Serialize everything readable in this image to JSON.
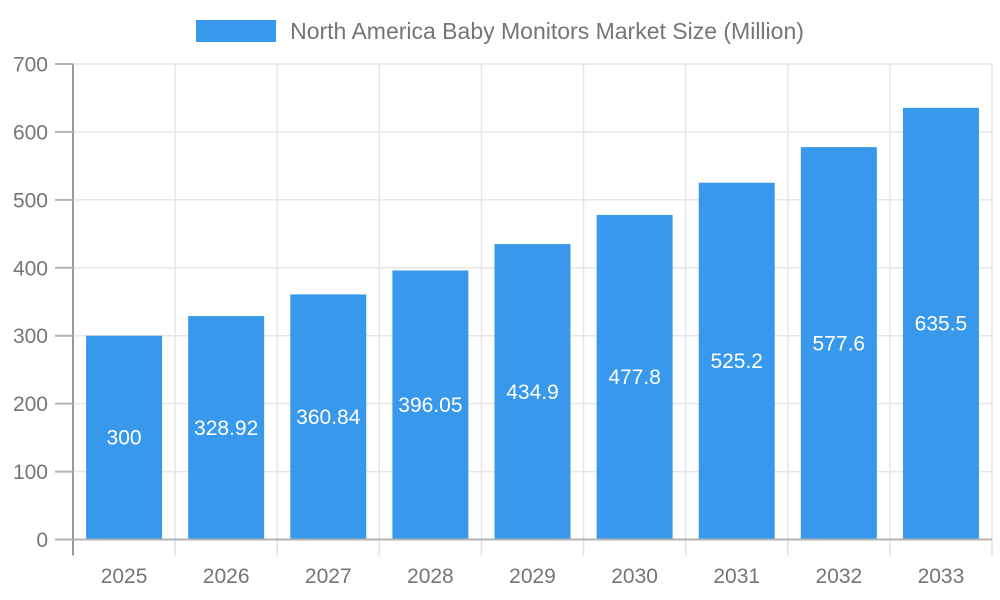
{
  "chart_data": {
    "type": "bar",
    "title": "North America Baby Monitors Market Size (Million)",
    "categories": [
      "2025",
      "2026",
      "2027",
      "2028",
      "2029",
      "2030",
      "2031",
      "2032",
      "2033"
    ],
    "values": [
      300,
      328.92,
      360.84,
      396.05,
      434.9,
      477.8,
      525.2,
      577.6,
      635.5
    ],
    "value_labels": [
      "300",
      "328.92",
      "360.84",
      "396.05",
      "434.9",
      "477.8",
      "525.2",
      "577.6",
      "635.5"
    ],
    "xlabel": "",
    "ylabel": "",
    "ylim": [
      0,
      700
    ],
    "y_ticks": [
      0,
      100,
      200,
      300,
      400,
      500,
      600,
      700
    ],
    "grid": true,
    "legend_position": "top",
    "colors": {
      "bar": "#3898ec",
      "value_label": "#ffffff",
      "axis_text": "#757575",
      "gridline": "#e6e6e6",
      "axis_line": "#999999",
      "baseline": "#b3b3b3",
      "y_tick": "#b3b3b3",
      "x_tick": "#e0e0e0",
      "background": "#ffffff"
    }
  }
}
